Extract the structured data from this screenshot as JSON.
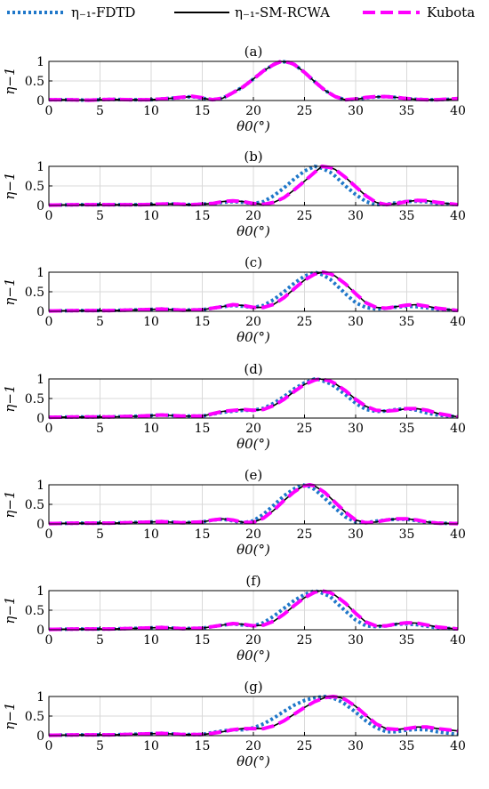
{
  "legend": [
    {
      "label": "η₋₁-FDTD",
      "color": "#1f77c9",
      "style": "dotted"
    },
    {
      "label": "η₋₁-SM-RCWA",
      "color": "#000000",
      "style": "solid"
    },
    {
      "label": "Kubota",
      "color": "#ff00ff",
      "style": "dashed"
    }
  ],
  "colors": {
    "fdtd": "#1f77c9",
    "smrcwa": "#000000",
    "kubota": "#ff00ff",
    "grid": "#d9d9d9"
  },
  "chart_data": [
    {
      "type": "line",
      "title": "(a)",
      "xlabel": "θ0(°)",
      "ylabel": "η−1",
      "xlim": [
        0,
        40
      ],
      "ylim": [
        0,
        1
      ],
      "xticks": [
        0,
        5,
        10,
        15,
        20,
        25,
        30,
        35,
        40
      ],
      "yticks": [
        0,
        0.5,
        1
      ],
      "grid": true,
      "x": [
        0,
        2,
        4,
        6,
        8,
        10,
        12,
        14,
        15,
        16,
        17,
        18,
        19,
        20,
        21,
        22,
        22.7,
        23.5,
        24,
        25,
        26,
        27,
        28,
        29,
        30,
        31,
        32,
        33,
        34,
        35,
        36,
        37,
        38,
        40
      ],
      "series": [
        {
          "name": "η₋₁-FDTD",
          "values": [
            0.02,
            0.02,
            0.01,
            0.03,
            0.02,
            0.02,
            0.06,
            0.1,
            0.06,
            0.02,
            0.06,
            0.2,
            0.35,
            0.55,
            0.76,
            0.92,
            1.0,
            0.97,
            0.92,
            0.72,
            0.48,
            0.26,
            0.1,
            0.02,
            0.03,
            0.07,
            0.09,
            0.1,
            0.08,
            0.05,
            0.03,
            0.02,
            0.02,
            0.04
          ]
        },
        {
          "name": "η₋₁-SM-RCWA",
          "values": [
            0.02,
            0.02,
            0.01,
            0.03,
            0.02,
            0.02,
            0.06,
            0.1,
            0.06,
            0.02,
            0.06,
            0.2,
            0.35,
            0.55,
            0.76,
            0.92,
            1.0,
            0.97,
            0.92,
            0.72,
            0.48,
            0.26,
            0.1,
            0.02,
            0.03,
            0.07,
            0.09,
            0.1,
            0.08,
            0.05,
            0.03,
            0.02,
            0.02,
            0.04
          ]
        },
        {
          "name": "Kubota",
          "values": [
            0.02,
            0.02,
            0.01,
            0.03,
            0.02,
            0.02,
            0.06,
            0.11,
            0.07,
            0.02,
            0.06,
            0.2,
            0.35,
            0.55,
            0.76,
            0.92,
            1.0,
            0.97,
            0.92,
            0.72,
            0.48,
            0.26,
            0.1,
            0.02,
            0.04,
            0.08,
            0.1,
            0.1,
            0.08,
            0.05,
            0.03,
            0.02,
            0.02,
            0.05
          ]
        }
      ]
    },
    {
      "type": "line",
      "title": "(b)",
      "xlabel": "θ0(°)",
      "ylabel": "η−1",
      "xlim": [
        0,
        40
      ],
      "ylim": [
        0,
        1
      ],
      "xticks": [
        0,
        5,
        10,
        15,
        20,
        25,
        30,
        35,
        40
      ],
      "yticks": [
        0,
        0.5,
        1
      ],
      "grid": true,
      "x": [
        0,
        3,
        6,
        9,
        12,
        14,
        16,
        17,
        18,
        19,
        20,
        21,
        22,
        23,
        24,
        25,
        26,
        26.7,
        27.5,
        28,
        29,
        30,
        31,
        32,
        33,
        34,
        35,
        36,
        37,
        38,
        40
      ],
      "series": [
        {
          "name": "η₋₁-FDTD",
          "values": [
            0.01,
            0.02,
            0.02,
            0.02,
            0.04,
            0.02,
            0.05,
            0.08,
            0.1,
            0.08,
            0.05,
            0.1,
            0.25,
            0.45,
            0.68,
            0.88,
            1.0,
            0.95,
            0.85,
            0.75,
            0.5,
            0.28,
            0.1,
            0.02,
            0.03,
            0.07,
            0.1,
            0.11,
            0.09,
            0.05,
            0.02
          ]
        },
        {
          "name": "η₋₁-SM-RCWA",
          "values": [
            0.01,
            0.02,
            0.02,
            0.02,
            0.04,
            0.02,
            0.05,
            0.1,
            0.12,
            0.1,
            0.05,
            0.03,
            0.08,
            0.2,
            0.4,
            0.62,
            0.85,
            1.0,
            0.97,
            0.92,
            0.72,
            0.48,
            0.25,
            0.08,
            0.02,
            0.05,
            0.1,
            0.13,
            0.12,
            0.08,
            0.02
          ]
        },
        {
          "name": "Kubota",
          "values": [
            0.01,
            0.02,
            0.02,
            0.02,
            0.04,
            0.02,
            0.05,
            0.1,
            0.12,
            0.1,
            0.05,
            0.03,
            0.08,
            0.2,
            0.4,
            0.62,
            0.85,
            1.0,
            0.97,
            0.92,
            0.72,
            0.48,
            0.25,
            0.08,
            0.02,
            0.05,
            0.1,
            0.13,
            0.12,
            0.08,
            0.02
          ]
        }
      ]
    },
    {
      "type": "line",
      "title": "(c)",
      "xlabel": "θ0(°)",
      "ylabel": "η−1",
      "xlim": [
        0,
        40
      ],
      "ylim": [
        0,
        1
      ],
      "xticks": [
        0,
        5,
        10,
        15,
        20,
        25,
        30,
        35,
        40
      ],
      "yticks": [
        0,
        0.5,
        1
      ],
      "grid": true,
      "x": [
        0,
        3,
        6,
        9,
        11,
        13,
        15,
        17,
        18,
        19,
        20,
        21,
        22,
        23,
        24,
        25,
        26,
        26.8,
        27.5,
        28,
        29,
        30,
        31,
        32,
        33,
        34,
        35,
        36,
        37,
        38,
        40
      ],
      "series": [
        {
          "name": "η₋₁-FDTD",
          "values": [
            0.01,
            0.02,
            0.02,
            0.04,
            0.06,
            0.03,
            0.04,
            0.12,
            0.15,
            0.13,
            0.1,
            0.15,
            0.3,
            0.5,
            0.72,
            0.9,
            1.0,
            0.93,
            0.82,
            0.7,
            0.45,
            0.22,
            0.1,
            0.06,
            0.08,
            0.11,
            0.13,
            0.12,
            0.09,
            0.05,
            0.02
          ]
        },
        {
          "name": "η₋₁-SM-RCWA",
          "values": [
            0.01,
            0.02,
            0.02,
            0.04,
            0.06,
            0.03,
            0.04,
            0.12,
            0.17,
            0.15,
            0.1,
            0.1,
            0.18,
            0.35,
            0.58,
            0.8,
            0.95,
            1.0,
            0.96,
            0.9,
            0.7,
            0.45,
            0.22,
            0.1,
            0.08,
            0.12,
            0.16,
            0.17,
            0.13,
            0.08,
            0.02
          ]
        },
        {
          "name": "Kubota",
          "values": [
            0.01,
            0.02,
            0.02,
            0.04,
            0.06,
            0.03,
            0.04,
            0.12,
            0.17,
            0.15,
            0.1,
            0.1,
            0.18,
            0.35,
            0.58,
            0.8,
            0.95,
            1.0,
            0.96,
            0.9,
            0.7,
            0.45,
            0.22,
            0.1,
            0.08,
            0.12,
            0.16,
            0.17,
            0.13,
            0.08,
            0.02
          ]
        }
      ]
    },
    {
      "type": "line",
      "title": "(d)",
      "xlabel": "θ0(°)",
      "ylabel": "η−1",
      "xlim": [
        0,
        40
      ],
      "ylim": [
        0,
        1
      ],
      "xticks": [
        0,
        5,
        10,
        15,
        20,
        25,
        30,
        35,
        40
      ],
      "yticks": [
        0,
        0.5,
        1
      ],
      "grid": true,
      "x": [
        0,
        3,
        6,
        9,
        11,
        13,
        15,
        17,
        19,
        20,
        21,
        22,
        23,
        24,
        25,
        26,
        26.5,
        27.5,
        28,
        29,
        30,
        31,
        32,
        33,
        34,
        35,
        36,
        37,
        38,
        40
      ],
      "series": [
        {
          "name": "η₋₁-FDTD",
          "values": [
            0.02,
            0.03,
            0.03,
            0.05,
            0.08,
            0.05,
            0.05,
            0.15,
            0.2,
            0.2,
            0.25,
            0.38,
            0.55,
            0.75,
            0.9,
            1.0,
            0.98,
            0.88,
            0.8,
            0.6,
            0.38,
            0.22,
            0.17,
            0.18,
            0.22,
            0.24,
            0.2,
            0.13,
            0.08,
            0.03
          ]
        },
        {
          "name": "η₋₁-SM-RCWA",
          "values": [
            0.02,
            0.03,
            0.03,
            0.05,
            0.08,
            0.05,
            0.05,
            0.17,
            0.22,
            0.2,
            0.22,
            0.32,
            0.48,
            0.68,
            0.86,
            0.97,
            1.0,
            0.95,
            0.88,
            0.7,
            0.48,
            0.3,
            0.2,
            0.18,
            0.2,
            0.24,
            0.24,
            0.2,
            0.12,
            0.03
          ]
        },
        {
          "name": "Kubota",
          "values": [
            0.02,
            0.03,
            0.03,
            0.05,
            0.08,
            0.05,
            0.05,
            0.17,
            0.22,
            0.2,
            0.22,
            0.32,
            0.48,
            0.68,
            0.86,
            0.97,
            1.0,
            0.95,
            0.88,
            0.7,
            0.48,
            0.3,
            0.2,
            0.18,
            0.2,
            0.24,
            0.24,
            0.2,
            0.12,
            0.03
          ]
        }
      ]
    },
    {
      "type": "line",
      "title": "(e)",
      "xlabel": "θ0(°)",
      "ylabel": "η−1",
      "xlim": [
        0,
        40
      ],
      "ylim": [
        0,
        1
      ],
      "xticks": [
        0,
        5,
        10,
        15,
        20,
        25,
        30,
        35,
        40
      ],
      "yticks": [
        0,
        0.5,
        1
      ],
      "grid": true,
      "x": [
        0,
        3,
        6,
        9,
        11,
        13,
        15,
        16,
        17,
        18,
        19,
        20,
        21,
        22,
        23,
        24,
        24.8,
        25.5,
        26,
        27,
        28,
        29,
        30,
        31,
        32,
        33,
        34,
        35,
        36,
        37,
        38,
        40
      ],
      "series": [
        {
          "name": "η₋₁-FDTD",
          "values": [
            0.01,
            0.02,
            0.02,
            0.04,
            0.06,
            0.03,
            0.05,
            0.1,
            0.12,
            0.08,
            0.03,
            0.08,
            0.25,
            0.48,
            0.72,
            0.9,
            1.0,
            0.95,
            0.88,
            0.65,
            0.4,
            0.18,
            0.05,
            0.03,
            0.07,
            0.1,
            0.12,
            0.12,
            0.08,
            0.04,
            0.02,
            0.01
          ]
        },
        {
          "name": "η₋₁-SM-RCWA",
          "values": [
            0.01,
            0.02,
            0.02,
            0.04,
            0.06,
            0.03,
            0.05,
            0.1,
            0.13,
            0.1,
            0.04,
            0.04,
            0.15,
            0.35,
            0.6,
            0.82,
            0.96,
            1.0,
            0.97,
            0.8,
            0.55,
            0.3,
            0.1,
            0.03,
            0.05,
            0.1,
            0.13,
            0.13,
            0.1,
            0.05,
            0.02,
            0.01
          ]
        },
        {
          "name": "Kubota",
          "values": [
            0.01,
            0.02,
            0.02,
            0.04,
            0.06,
            0.03,
            0.05,
            0.1,
            0.13,
            0.1,
            0.04,
            0.04,
            0.15,
            0.35,
            0.6,
            0.82,
            0.96,
            1.0,
            0.97,
            0.8,
            0.55,
            0.3,
            0.1,
            0.03,
            0.05,
            0.1,
            0.13,
            0.13,
            0.1,
            0.05,
            0.02,
            0.01
          ]
        }
      ]
    },
    {
      "type": "line",
      "title": "(f)",
      "xlabel": "θ0(°)",
      "ylabel": "η−1",
      "xlim": [
        0,
        40
      ],
      "ylim": [
        0,
        1
      ],
      "xticks": [
        0,
        5,
        10,
        15,
        20,
        25,
        30,
        35,
        40
      ],
      "yticks": [
        0,
        0.5,
        1
      ],
      "grid": true,
      "x": [
        0,
        3,
        6,
        9,
        11,
        13,
        15,
        17,
        18,
        19,
        20,
        21,
        22,
        23,
        24,
        25,
        26,
        26.6,
        27.5,
        28,
        29,
        30,
        31,
        32,
        33,
        34,
        35,
        36,
        37,
        38,
        40
      ],
      "series": [
        {
          "name": "η₋₁-FDTD",
          "values": [
            0.01,
            0.02,
            0.02,
            0.04,
            0.06,
            0.03,
            0.04,
            0.12,
            0.15,
            0.12,
            0.1,
            0.18,
            0.35,
            0.55,
            0.75,
            0.9,
            1.0,
            0.95,
            0.85,
            0.72,
            0.48,
            0.25,
            0.1,
            0.08,
            0.1,
            0.14,
            0.15,
            0.13,
            0.09,
            0.05,
            0.02
          ]
        },
        {
          "name": "η₋₁-SM-RCWA",
          "values": [
            0.01,
            0.02,
            0.02,
            0.04,
            0.06,
            0.03,
            0.04,
            0.12,
            0.16,
            0.14,
            0.1,
            0.12,
            0.22,
            0.4,
            0.62,
            0.82,
            0.96,
            1.0,
            0.95,
            0.88,
            0.68,
            0.42,
            0.2,
            0.1,
            0.1,
            0.15,
            0.18,
            0.17,
            0.12,
            0.07,
            0.02
          ]
        },
        {
          "name": "Kubota",
          "values": [
            0.01,
            0.02,
            0.02,
            0.04,
            0.06,
            0.03,
            0.04,
            0.12,
            0.16,
            0.14,
            0.1,
            0.12,
            0.22,
            0.4,
            0.62,
            0.82,
            0.96,
            1.0,
            0.95,
            0.88,
            0.68,
            0.42,
            0.2,
            0.1,
            0.1,
            0.15,
            0.18,
            0.17,
            0.12,
            0.07,
            0.02
          ]
        }
      ]
    },
    {
      "type": "line",
      "title": "(g)",
      "xlabel": "θ0(°)",
      "ylabel": "η−1",
      "xlim": [
        0,
        40
      ],
      "ylim": [
        0,
        1
      ],
      "xticks": [
        0,
        5,
        10,
        15,
        20,
        25,
        30,
        35,
        40
      ],
      "yticks": [
        0,
        0.5,
        1
      ],
      "grid": true,
      "x": [
        0,
        3,
        6,
        9,
        11,
        13,
        15,
        16,
        17,
        18,
        19,
        20,
        21,
        22,
        23,
        24,
        25,
        26,
        27,
        27.8,
        28.5,
        29,
        30,
        31,
        32,
        33,
        34,
        35,
        36,
        37,
        38,
        40
      ],
      "series": [
        {
          "name": "η₋₁-FDTD",
          "values": [
            0.01,
            0.02,
            0.02,
            0.04,
            0.06,
            0.03,
            0.03,
            0.08,
            0.12,
            0.15,
            0.15,
            0.2,
            0.3,
            0.45,
            0.62,
            0.78,
            0.9,
            0.97,
            1.0,
            0.96,
            0.88,
            0.8,
            0.6,
            0.38,
            0.2,
            0.1,
            0.1,
            0.14,
            0.16,
            0.15,
            0.1,
            0.03
          ]
        },
        {
          "name": "η₋₁-SM-RCWA",
          "values": [
            0.01,
            0.02,
            0.02,
            0.04,
            0.06,
            0.03,
            0.03,
            0.06,
            0.1,
            0.15,
            0.18,
            0.18,
            0.18,
            0.25,
            0.38,
            0.55,
            0.72,
            0.87,
            0.97,
            1.0,
            0.97,
            0.92,
            0.75,
            0.52,
            0.3,
            0.18,
            0.16,
            0.18,
            0.22,
            0.22,
            0.18,
            0.12
          ]
        },
        {
          "name": "Kubota",
          "values": [
            0.01,
            0.02,
            0.02,
            0.04,
            0.06,
            0.03,
            0.03,
            0.06,
            0.1,
            0.15,
            0.18,
            0.18,
            0.18,
            0.25,
            0.38,
            0.55,
            0.72,
            0.87,
            0.97,
            1.0,
            0.97,
            0.92,
            0.75,
            0.52,
            0.3,
            0.18,
            0.16,
            0.18,
            0.22,
            0.22,
            0.18,
            0.12
          ]
        }
      ]
    }
  ]
}
